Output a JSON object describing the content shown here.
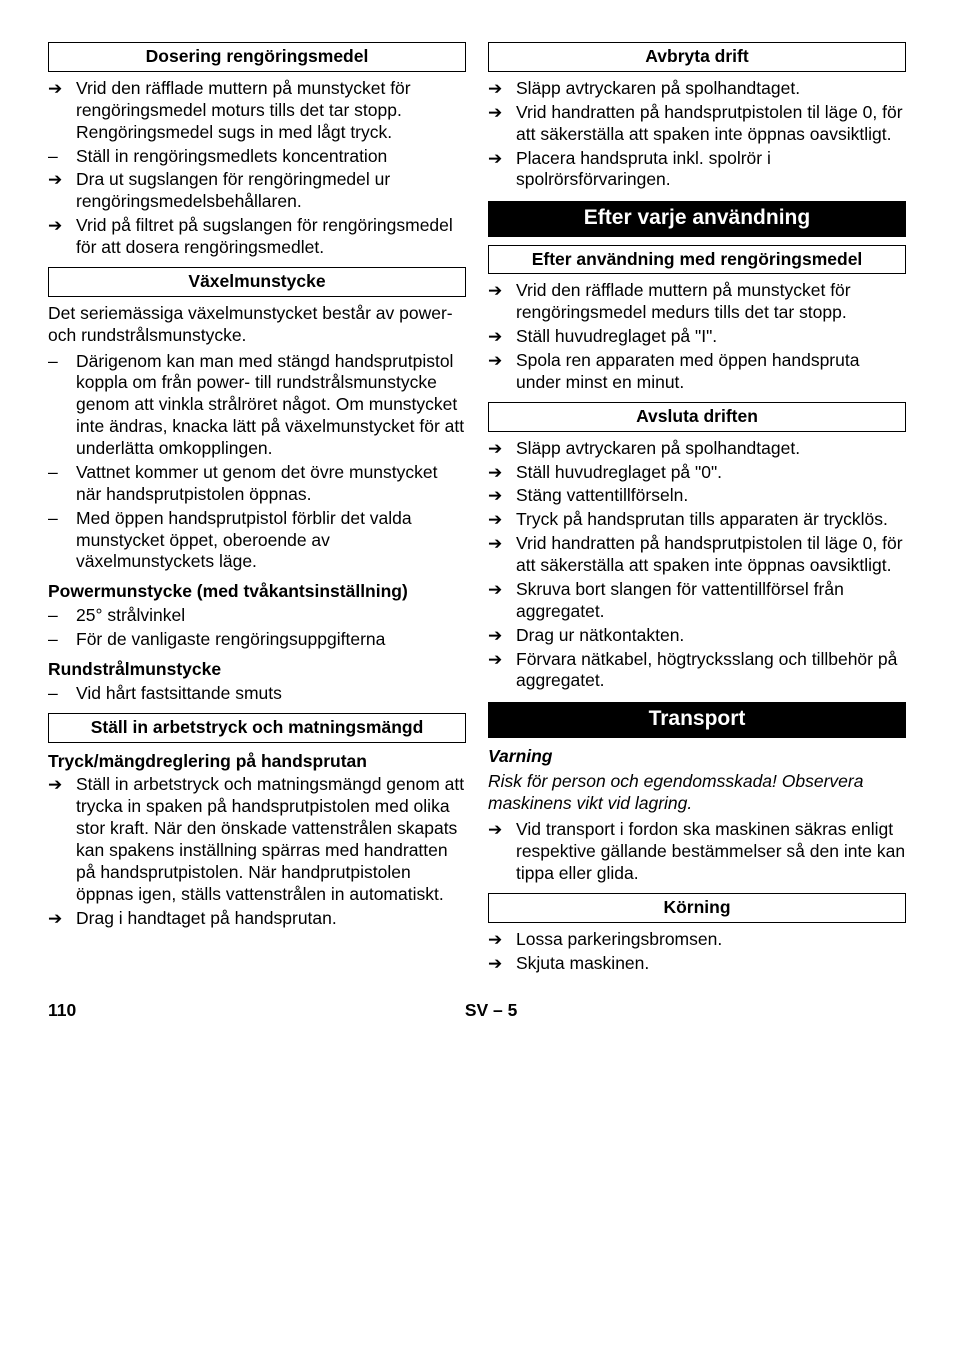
{
  "left": {
    "h1": "Dosering rengöringsmedel",
    "b1": [
      {
        "m": "arrow",
        "t": "Vrid den räfflade muttern på munstycket för rengöringsmedel moturs tills det tar stopp. Rengöringsmedel sugs in med lågt tryck."
      },
      {
        "m": "dash",
        "t": "Ställ in rengöringsmedlets koncentration"
      },
      {
        "m": "arrow",
        "t": "Dra ut sugslangen för rengöringmedel ur rengöringsmedelsbehållaren."
      },
      {
        "m": "arrow",
        "t": "Vrid på filtret på sugslangen för rengöringsmedel för att dosera rengöringsmedlet."
      }
    ],
    "h2": "Växelmunstycke",
    "p1": "Det seriemässiga växelmunstycket består av power- och rundstrålsmunstycke.",
    "b2": [
      {
        "m": "dash",
        "t": "Därigenom kan man med stängd handsprutpistol koppla om från power- till rundstrålsmunstycke genom att vinkla strålröret något. Om munstycket inte ändras, knacka lätt på växelmunstycket för att underlätta omkopplingen."
      },
      {
        "m": "dash",
        "t": "Vattnet kommer ut genom det övre munstycket när handsprutpistolen öppnas."
      },
      {
        "m": "dash",
        "t": "Med öppen handsprutpistol förblir det valda munstycket öppet, oberoende av växelmunstyckets läge."
      }
    ],
    "sh1": "Powermunstycke (med tvåkantsinställning)",
    "b3": [
      {
        "m": "dash",
        "t": "25° strålvinkel"
      },
      {
        "m": "dash",
        "t": "För de vanligaste rengöringsuppgifterna"
      }
    ],
    "sh2": "Rundstrålmunstycke",
    "b4": [
      {
        "m": "dash",
        "t": "Vid hårt fastsittande smuts"
      }
    ],
    "h3": "Ställ in arbetstryck och matningsmängd",
    "sh3": "Tryck/mängdreglering på handsprutan",
    "b5": [
      {
        "m": "arrow",
        "t": "Ställ in arbetstryck och matningsmängd genom att trycka in spaken på handsprutpistolen med olika stor kraft. När den önskade vattenstrålen skapats kan spakens inställning spärras med handratten på handsprutpistolen. När handprutpistolen öppnas igen, ställs vattenstrålen in automatiskt."
      },
      {
        "m": "arrow",
        "t": "Drag i handtaget på handsprutan."
      }
    ]
  },
  "right": {
    "h1": "Avbryta drift",
    "b1": [
      {
        "m": "arrow",
        "t": "Släpp avtryckaren på spolhandtaget."
      },
      {
        "m": "arrow",
        "t": "Vrid handratten på handsprutpistolen til läge 0, för att säkerställa att spaken inte öppnas oavsiktligt."
      },
      {
        "m": "arrow",
        "t": "Placera handspruta inkl. spolrör i spolrörsförvaringen."
      }
    ],
    "hb1": "Efter varje användning",
    "h2": "Efter användning med rengöringsmedel",
    "b2": [
      {
        "m": "arrow",
        "t": "Vrid den räfflade muttern på munstycket för rengöringsmedel medurs tills det tar stopp."
      },
      {
        "m": "arrow",
        "t": "Ställ huvudreglaget på \"I\"."
      },
      {
        "m": "arrow",
        "t": "Spola ren apparaten med öppen handspruta under minst en minut."
      }
    ],
    "h3": "Avsluta driften",
    "b3": [
      {
        "m": "arrow",
        "t": "Släpp avtryckaren på spolhandtaget."
      },
      {
        "m": "arrow",
        "t": "Ställ huvudreglaget på \"0\"."
      },
      {
        "m": "arrow",
        "t": "Stäng vattentillförseln."
      },
      {
        "m": "arrow",
        "t": "Tryck på handsprutan tills apparaten är trycklös."
      },
      {
        "m": "arrow",
        "t": "Vrid handratten på handsprutpistolen til läge 0, för att säkerställa att spaken inte öppnas oavsiktligt."
      },
      {
        "m": "arrow",
        "t": "Skruva bort slangen för vattentillförsel från aggregatet."
      },
      {
        "m": "arrow",
        "t": "Drag ur nätkontakten."
      },
      {
        "m": "arrow",
        "t": "Förvara nätkabel, högtrycksslang och tillbehör på aggregatet."
      }
    ],
    "hb2": "Transport",
    "sh1": "Varning",
    "p1": "Risk för person och egendomsskada! Observera maskinens vikt vid lagring.",
    "b4": [
      {
        "m": "arrow",
        "t": "Vid transport i fordon ska maskinen säkras enligt respektive gällande bestämmelser så den inte kan tippa eller glida."
      }
    ],
    "h4": "Körning",
    "b5": [
      {
        "m": "arrow",
        "t": "Lossa parkeringsbromsen."
      },
      {
        "m": "arrow",
        "t": "Skjuta maskinen."
      }
    ]
  },
  "footer": {
    "page": "110",
    "lang": "SV – 5"
  }
}
